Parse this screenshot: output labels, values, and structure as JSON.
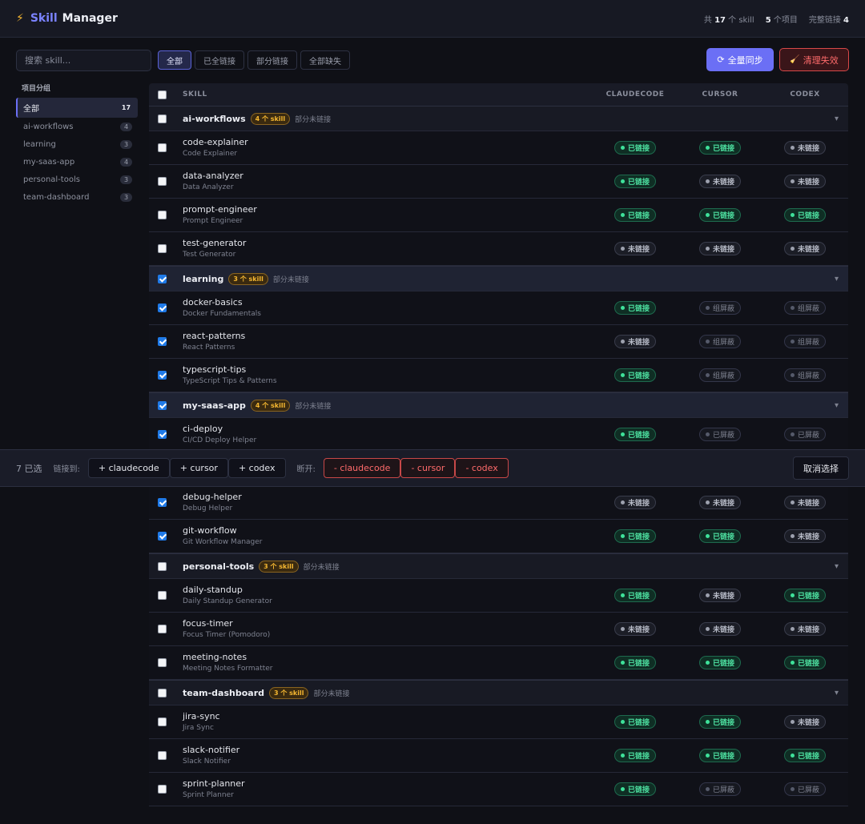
{
  "app": {
    "title_part1": "Skill",
    "title_part2": "Manager",
    "bolt_icon": "⚡"
  },
  "stats": {
    "total_prefix": "共",
    "total_value": "17",
    "total_suffix": "个 skill",
    "projects_value": "5",
    "projects_suffix": "个项目",
    "full_prefix": "完整链接",
    "full_value": "4"
  },
  "search": {
    "placeholder": "搜索 skill..."
  },
  "filters": [
    "全部",
    "已全链接",
    "部分链接",
    "全部缺失"
  ],
  "actions": {
    "sync": "全量同步",
    "sync_icon": "⟳",
    "clean": "清理失效",
    "clean_icon": "🧹"
  },
  "sidebar": {
    "title": "项目分组",
    "items": [
      {
        "label": "全部",
        "count": "17"
      },
      {
        "label": "ai-workflows",
        "count": "4"
      },
      {
        "label": "learning",
        "count": "3"
      },
      {
        "label": "my-saas-app",
        "count": "4"
      },
      {
        "label": "personal-tools",
        "count": "3"
      },
      {
        "label": "team-dashboard",
        "count": "3"
      }
    ]
  },
  "table": {
    "headers": {
      "skill": "SKILL",
      "claudecode": "CLAUDECODE",
      "cursor": "CURSOR",
      "codex": "CODEX"
    },
    "chevron": "▾",
    "groups": [
      {
        "name": "ai-workflows",
        "badge": "4 个 skill",
        "note": "部分未链接"
      },
      {
        "name": "learning",
        "badge": "3 个 skill",
        "note": "部分未链接"
      },
      {
        "name": "my-saas-app",
        "badge": "4 个 skill",
        "note": "部分未链接"
      },
      {
        "name": "personal-tools",
        "badge": "3 个 skill",
        "note": "部分未链接"
      },
      {
        "name": "team-dashboard",
        "badge": "3 个 skill",
        "note": "部分未链接"
      }
    ],
    "skills": [
      {
        "name": "code-explainer",
        "desc": "Code Explainer",
        "s": [
          "已链接",
          "已链接",
          "未链接"
        ]
      },
      {
        "name": "data-analyzer",
        "desc": "Data Analyzer",
        "s": [
          "已链接",
          "未链接",
          "未链接"
        ]
      },
      {
        "name": "prompt-engineer",
        "desc": "Prompt Engineer",
        "s": [
          "已链接",
          "已链接",
          "已链接"
        ]
      },
      {
        "name": "test-generator",
        "desc": "Test Generator",
        "s": [
          "未链接",
          "未链接",
          "未链接"
        ]
      },
      {
        "name": "docker-basics",
        "desc": "Docker Fundamentals",
        "s": [
          "已链接",
          "组屏蔽",
          "组屏蔽"
        ]
      },
      {
        "name": "react-patterns",
        "desc": "React Patterns",
        "s": [
          "未链接",
          "组屏蔽",
          "组屏蔽"
        ]
      },
      {
        "name": "typescript-tips",
        "desc": "TypeScript Tips & Patterns",
        "s": [
          "已链接",
          "组屏蔽",
          "组屏蔽"
        ]
      },
      {
        "name": "ci-deploy",
        "desc": "CI/CD Deploy Helper",
        "s": [
          "已链接",
          "已屏蔽",
          "已屏蔽"
        ]
      },
      {
        "name": "debug-helper",
        "desc": "Debug Helper",
        "s": [
          "未链接",
          "未链接",
          "未链接"
        ]
      },
      {
        "name": "git-workflow",
        "desc": "Git Workflow Manager",
        "s": [
          "已链接",
          "已链接",
          "未链接"
        ]
      },
      {
        "name": "daily-standup",
        "desc": "Daily Standup Generator",
        "s": [
          "已链接",
          "未链接",
          "已链接"
        ]
      },
      {
        "name": "focus-timer",
        "desc": "Focus Timer (Pomodoro)",
        "s": [
          "未链接",
          "未链接",
          "未链接"
        ]
      },
      {
        "name": "meeting-notes",
        "desc": "Meeting Notes Formatter",
        "s": [
          "已链接",
          "已链接",
          "已链接"
        ]
      },
      {
        "name": "jira-sync",
        "desc": "Jira Sync",
        "s": [
          "已链接",
          "已链接",
          "未链接"
        ]
      },
      {
        "name": "slack-notifier",
        "desc": "Slack Notifier",
        "s": [
          "已链接",
          "已链接",
          "已链接"
        ]
      },
      {
        "name": "sprint-planner",
        "desc": "Sprint Planner",
        "s": [
          "已链接",
          "已屏蔽",
          "已屏蔽"
        ]
      }
    ]
  },
  "bulk": {
    "selected": "7 已选",
    "link_label": "链接到:",
    "link_buttons": [
      "+ claudecode",
      "+ cursor",
      "+ codex"
    ],
    "unlink_label": "断开:",
    "unlink_buttons": [
      "- claudecode",
      "- cursor",
      "- codex"
    ],
    "cancel": "取消选择"
  }
}
